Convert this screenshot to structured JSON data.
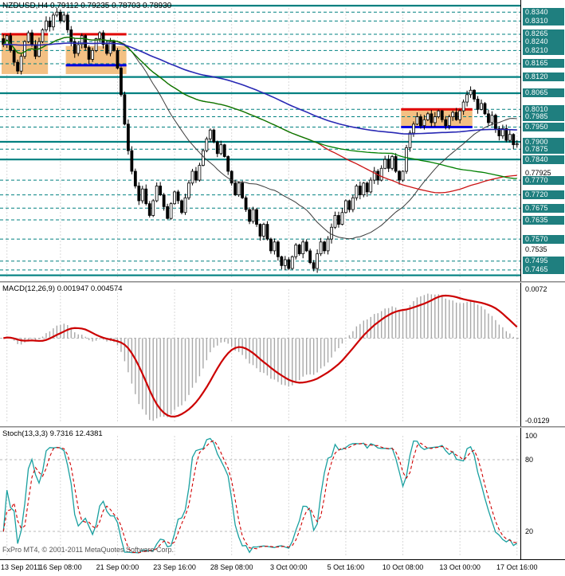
{
  "main": {
    "title": "NZDUSD,H4 0.79112 0.79235 0.78703 0.78930",
    "symbol_period": "NZDUSD,H4",
    "open": "0.79112",
    "high": "0.79235",
    "low": "0.78703",
    "close": "0.78930"
  },
  "macd": {
    "label": "MACD(12,26,9) 0.001947 0.004574",
    "name": "MACD",
    "params": [
      12,
      26,
      9
    ],
    "value_main": "0.001947",
    "value_signal": "0.004574",
    "axis_top": "0.0072",
    "axis_bottom": "-0.0129"
  },
  "stoch": {
    "label": "Stoch(13,3,3) 9.7316 12.4381",
    "name": "Stochastic",
    "params": [
      13,
      3,
      3
    ],
    "value_k": "9.7316",
    "value_d": "12.4381",
    "axis_labels": [
      {
        "text": "100",
        "value": 100
      },
      {
        "text": "80",
        "value": 80
      },
      {
        "text": "20",
        "value": 20
      }
    ],
    "level_lines": [
      80,
      20
    ],
    "range": [
      0,
      100
    ]
  },
  "footer": {
    "copyright": "FxPro MT4, © 2001-2011 MetaQuotes Software Corp."
  },
  "time_axis": {
    "labels": [
      "13 Sep 2011",
      "16 Sep 08:00",
      "21 Sep 00:00",
      "23 Sep 16:00",
      "28 Sep 08:00",
      "3 Oct 00:00",
      "5 Oct 16:00",
      "10 Oct 08:00",
      "13 Oct 00:00",
      "17 Oct 16:00"
    ],
    "tick_bars": [
      1,
      16,
      32,
      48,
      64,
      80,
      96,
      112,
      128,
      144
    ]
  },
  "price_axis_plain_labels": [
    {
      "label": "0.77925",
      "price": 0.77925
    },
    {
      "label": "0.7535",
      "price": 0.7535
    }
  ],
  "colors": {
    "level_teal": "#008080",
    "badge_bg": "#1f7f7f",
    "badge_text": "#ffffff",
    "box_fill": "#f3c083",
    "segment_red": "#e00000",
    "segment_blue": "#0000e0",
    "candle_up": "#ffffff",
    "candle_down": "#000000",
    "candle_stroke": "#000000",
    "macd_hist": "#a8a8a8",
    "macd_signal": "#cc0000",
    "stoch_main": "#19a0a0",
    "stoch_signal": "#d00000",
    "grid": "#d9d9d9",
    "silver_level": "#b8b8b8"
  },
  "chart_data": [
    {
      "type": "candlestick",
      "title": "NZDUSD H4 price chart",
      "symbol": "NZDUSD",
      "timeframe": "H4",
      "ylim": [
        0.7435,
        0.8365
      ],
      "closes": [
        0.823,
        0.826,
        0.821,
        0.817,
        0.814,
        0.819,
        0.824,
        0.827,
        0.823,
        0.819,
        0.824,
        0.828,
        0.831,
        0.829,
        0.833,
        0.834,
        0.831,
        0.833,
        0.828,
        0.824,
        0.82,
        0.823,
        0.826,
        0.822,
        0.818,
        0.821,
        0.825,
        0.827,
        0.823,
        0.82,
        0.824,
        0.821,
        0.815,
        0.806,
        0.796,
        0.787,
        0.78,
        0.775,
        0.77,
        0.774,
        0.769,
        0.765,
        0.77,
        0.775,
        0.772,
        0.768,
        0.764,
        0.769,
        0.773,
        0.77,
        0.766,
        0.771,
        0.776,
        0.78,
        0.777,
        0.782,
        0.787,
        0.791,
        0.794,
        0.79,
        0.786,
        0.789,
        0.785,
        0.78,
        0.776,
        0.772,
        0.776,
        0.771,
        0.767,
        0.763,
        0.767,
        0.762,
        0.758,
        0.762,
        0.757,
        0.753,
        0.756,
        0.751,
        0.748,
        0.75,
        0.747,
        0.751,
        0.755,
        0.752,
        0.756,
        0.753,
        0.749,
        0.747,
        0.752,
        0.756,
        0.753,
        0.757,
        0.761,
        0.765,
        0.762,
        0.766,
        0.77,
        0.767,
        0.771,
        0.775,
        0.772,
        0.776,
        0.773,
        0.777,
        0.78,
        0.777,
        0.781,
        0.784,
        0.781,
        0.785,
        0.78,
        0.777,
        0.78,
        0.788,
        0.793,
        0.796,
        0.7985,
        0.7955,
        0.7975,
        0.7995,
        0.7965,
        0.7985,
        0.8005,
        0.7975,
        0.7955,
        0.7985,
        0.8,
        0.7975,
        0.8005,
        0.8035,
        0.806,
        0.8075,
        0.8045,
        0.801,
        0.803,
        0.7995,
        0.7965,
        0.799,
        0.7945,
        0.792,
        0.7945,
        0.7905,
        0.7925,
        0.789,
        0.7893
      ],
      "levels": [
        {
          "price": 0.8362,
          "label": "",
          "style": "solid"
        },
        {
          "price": 0.834,
          "label": "0.8340",
          "style": "dashed"
        },
        {
          "price": 0.831,
          "label": "0.8310",
          "style": "dashed"
        },
        {
          "price": 0.8265,
          "label": "0.8265",
          "style": "dashed"
        },
        {
          "price": 0.824,
          "label": "0.8240",
          "style": "dashed"
        },
        {
          "price": 0.821,
          "label": "0.8210",
          "style": "dashed"
        },
        {
          "price": 0.8165,
          "label": "0.8165",
          "style": "dashed"
        },
        {
          "price": 0.812,
          "label": "0.8120",
          "style": "solid"
        },
        {
          "price": 0.8065,
          "label": "0.8065",
          "style": "solid"
        },
        {
          "price": 0.801,
          "label": "0.8010",
          "style": "dashed"
        },
        {
          "price": 0.7985,
          "label": "0.7985",
          "style": "dashed"
        },
        {
          "price": 0.795,
          "label": "0.7950",
          "style": "dashed"
        },
        {
          "price": 0.79,
          "label": "0.7900",
          "style": "solid"
        },
        {
          "price": 0.7875,
          "label": "0.7875",
          "style": "dashed"
        },
        {
          "price": 0.784,
          "label": "0.7840",
          "style": "solid"
        },
        {
          "price": 0.777,
          "label": "0.7770",
          "style": "dashed"
        },
        {
          "price": 0.772,
          "label": "0.7720",
          "style": "dashed"
        },
        {
          "price": 0.7675,
          "label": "0.7675",
          "style": "dashed"
        },
        {
          "price": 0.7635,
          "label": "0.7635",
          "style": "dashed"
        },
        {
          "price": 0.757,
          "label": "0.7570",
          "style": "dashed"
        },
        {
          "price": 0.7495,
          "label": "0.7495",
          "style": "dashed"
        },
        {
          "price": 0.7465,
          "label": "0.7465",
          "style": "dashed"
        },
        {
          "price": 0.7447,
          "label": "",
          "style": "solid"
        }
      ],
      "boxes": [
        {
          "from_bar": 0,
          "to_bar": 12,
          "price_low": 0.813,
          "price_high": 0.8265
        },
        {
          "from_bar": 18,
          "to_bar": 34,
          "price_low": 0.813,
          "price_high": 0.8225
        },
        {
          "from_bar": 112,
          "to_bar": 131,
          "price_low": 0.795,
          "price_high": 0.801
        }
      ],
      "segments": [
        {
          "from_bar": 0,
          "to_bar": 12,
          "price": 0.8265,
          "color": "red"
        },
        {
          "from_bar": 20,
          "to_bar": 34,
          "price": 0.8265,
          "color": "red"
        },
        {
          "from_bar": 18,
          "to_bar": 34,
          "price": 0.816,
          "color": "blue"
        },
        {
          "from_bar": 112,
          "to_bar": 131,
          "price": 0.801,
          "color": "red"
        },
        {
          "from_bar": 112,
          "to_bar": 131,
          "price": 0.795,
          "color": "blue"
        }
      ],
      "moving_averages": [
        {
          "period": 30,
          "method": "sma",
          "color": "#3c3c3c",
          "width": 1
        },
        {
          "period": 89,
          "method": "sma",
          "color": "#cc1414",
          "width": 1.3
        },
        {
          "period": 110,
          "method": "sma",
          "color": "#008000",
          "width": 1.3
        },
        {
          "period": 190,
          "method": "ema",
          "color": "#2828b4",
          "width": 1.6
        }
      ]
    },
    {
      "type": "bar",
      "title": "MACD(12,26,9)",
      "series_note": "histogram = EMA12-EMA26 of main closes, red line = SMA9 signal",
      "current_main": 0.001947,
      "current_signal": 0.004574,
      "axis_labels": [
        "0.0072",
        "-0.0129"
      ]
    },
    {
      "type": "line",
      "title": "Stoch(13,3,3)",
      "series_note": "teal %K and dashed red %D computed from main OHLC",
      "current_k": 9.7316,
      "current_d": 12.4381,
      "ylim": [
        0,
        100
      ],
      "levels": [
        80,
        20
      ]
    }
  ]
}
